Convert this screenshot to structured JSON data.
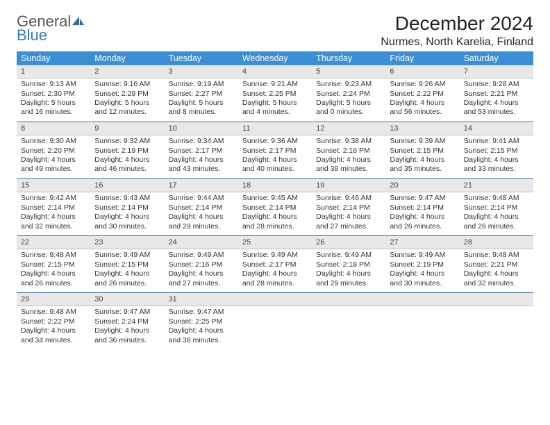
{
  "logo": {
    "part1": "General",
    "part2": "Blue"
  },
  "title": "December 2024",
  "location": "Nurmes, North Karelia, Finland",
  "colors": {
    "header_bg": "#3b8fd4",
    "header_fg": "#ffffff",
    "row_border": "#2a6ea8",
    "daynum_bg": "#e8e8e8",
    "logo_gray": "#555555",
    "logo_blue": "#2d7cc1"
  },
  "day_names": [
    "Sunday",
    "Monday",
    "Tuesday",
    "Wednesday",
    "Thursday",
    "Friday",
    "Saturday"
  ],
  "weeks": [
    [
      {
        "n": "1",
        "sunrise": "9:13 AM",
        "sunset": "2:30 PM",
        "dl": "5 hours and 16 minutes."
      },
      {
        "n": "2",
        "sunrise": "9:16 AM",
        "sunset": "2:29 PM",
        "dl": "5 hours and 12 minutes."
      },
      {
        "n": "3",
        "sunrise": "9:19 AM",
        "sunset": "2:27 PM",
        "dl": "5 hours and 8 minutes."
      },
      {
        "n": "4",
        "sunrise": "9:21 AM",
        "sunset": "2:25 PM",
        "dl": "5 hours and 4 minutes."
      },
      {
        "n": "5",
        "sunrise": "9:23 AM",
        "sunset": "2:24 PM",
        "dl": "5 hours and 0 minutes."
      },
      {
        "n": "6",
        "sunrise": "9:26 AM",
        "sunset": "2:22 PM",
        "dl": "4 hours and 56 minutes."
      },
      {
        "n": "7",
        "sunrise": "9:28 AM",
        "sunset": "2:21 PM",
        "dl": "4 hours and 53 minutes."
      }
    ],
    [
      {
        "n": "8",
        "sunrise": "9:30 AM",
        "sunset": "2:20 PM",
        "dl": "4 hours and 49 minutes."
      },
      {
        "n": "9",
        "sunrise": "9:32 AM",
        "sunset": "2:19 PM",
        "dl": "4 hours and 46 minutes."
      },
      {
        "n": "10",
        "sunrise": "9:34 AM",
        "sunset": "2:17 PM",
        "dl": "4 hours and 43 minutes."
      },
      {
        "n": "11",
        "sunrise": "9:36 AM",
        "sunset": "2:17 PM",
        "dl": "4 hours and 40 minutes."
      },
      {
        "n": "12",
        "sunrise": "9:38 AM",
        "sunset": "2:16 PM",
        "dl": "4 hours and 38 minutes."
      },
      {
        "n": "13",
        "sunrise": "9:39 AM",
        "sunset": "2:15 PM",
        "dl": "4 hours and 35 minutes."
      },
      {
        "n": "14",
        "sunrise": "9:41 AM",
        "sunset": "2:15 PM",
        "dl": "4 hours and 33 minutes."
      }
    ],
    [
      {
        "n": "15",
        "sunrise": "9:42 AM",
        "sunset": "2:14 PM",
        "dl": "4 hours and 32 minutes."
      },
      {
        "n": "16",
        "sunrise": "9:43 AM",
        "sunset": "2:14 PM",
        "dl": "4 hours and 30 minutes."
      },
      {
        "n": "17",
        "sunrise": "9:44 AM",
        "sunset": "2:14 PM",
        "dl": "4 hours and 29 minutes."
      },
      {
        "n": "18",
        "sunrise": "9:45 AM",
        "sunset": "2:14 PM",
        "dl": "4 hours and 28 minutes."
      },
      {
        "n": "19",
        "sunrise": "9:46 AM",
        "sunset": "2:14 PM",
        "dl": "4 hours and 27 minutes."
      },
      {
        "n": "20",
        "sunrise": "9:47 AM",
        "sunset": "2:14 PM",
        "dl": "4 hours and 26 minutes."
      },
      {
        "n": "21",
        "sunrise": "9:48 AM",
        "sunset": "2:14 PM",
        "dl": "4 hours and 26 minutes."
      }
    ],
    [
      {
        "n": "22",
        "sunrise": "9:48 AM",
        "sunset": "2:15 PM",
        "dl": "4 hours and 26 minutes."
      },
      {
        "n": "23",
        "sunrise": "9:49 AM",
        "sunset": "2:15 PM",
        "dl": "4 hours and 26 minutes."
      },
      {
        "n": "24",
        "sunrise": "9:49 AM",
        "sunset": "2:16 PM",
        "dl": "4 hours and 27 minutes."
      },
      {
        "n": "25",
        "sunrise": "9:49 AM",
        "sunset": "2:17 PM",
        "dl": "4 hours and 28 minutes."
      },
      {
        "n": "26",
        "sunrise": "9:49 AM",
        "sunset": "2:18 PM",
        "dl": "4 hours and 29 minutes."
      },
      {
        "n": "27",
        "sunrise": "9:49 AM",
        "sunset": "2:19 PM",
        "dl": "4 hours and 30 minutes."
      },
      {
        "n": "28",
        "sunrise": "9:48 AM",
        "sunset": "2:21 PM",
        "dl": "4 hours and 32 minutes."
      }
    ],
    [
      {
        "n": "29",
        "sunrise": "9:48 AM",
        "sunset": "2:22 PM",
        "dl": "4 hours and 34 minutes."
      },
      {
        "n": "30",
        "sunrise": "9:47 AM",
        "sunset": "2:24 PM",
        "dl": "4 hours and 36 minutes."
      },
      {
        "n": "31",
        "sunrise": "9:47 AM",
        "sunset": "2:25 PM",
        "dl": "4 hours and 38 minutes."
      },
      null,
      null,
      null,
      null
    ]
  ],
  "labels": {
    "sunrise": "Sunrise:",
    "sunset": "Sunset:",
    "daylight": "Daylight:"
  }
}
